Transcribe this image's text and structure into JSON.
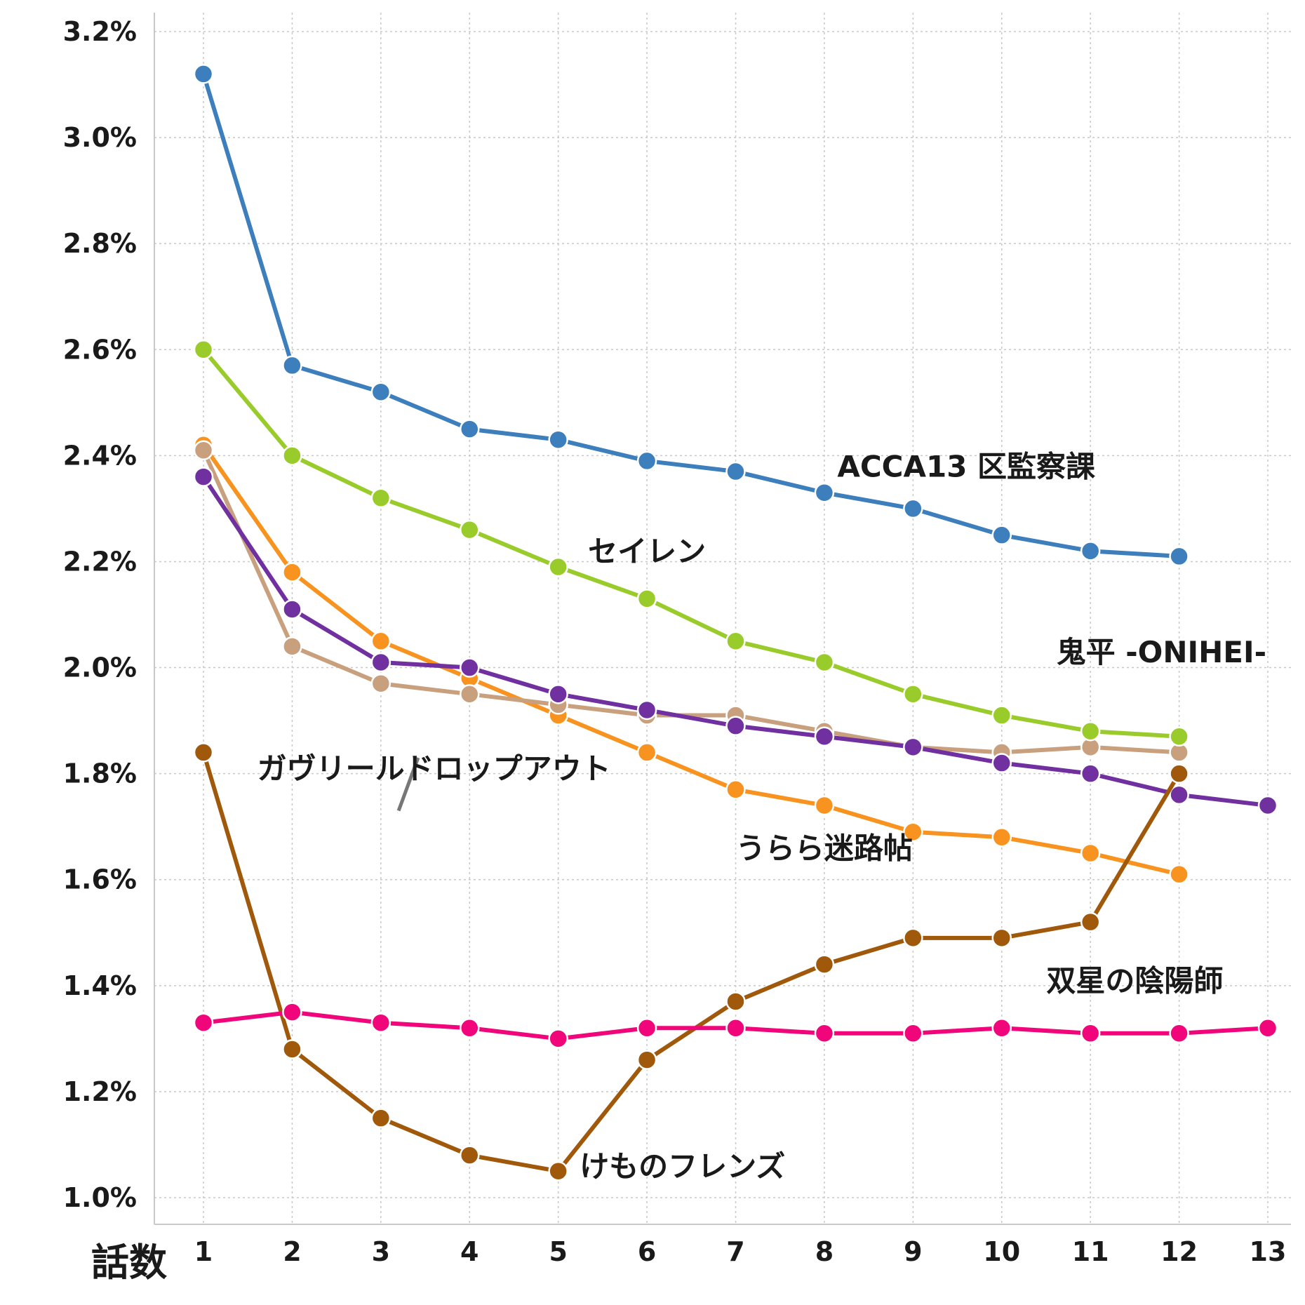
{
  "chart_data": {
    "type": "line",
    "title": "",
    "xlabel": "話数",
    "ylabel": "",
    "x": [
      1,
      2,
      3,
      4,
      5,
      6,
      7,
      8,
      9,
      10,
      11,
      12,
      13
    ],
    "xticks": [
      "1",
      "2",
      "3",
      "4",
      "5",
      "6",
      "7",
      "8",
      "9",
      "10",
      "11",
      "12",
      "13"
    ],
    "xlim": [
      1,
      13
    ],
    "ylim": [
      1.0,
      3.2
    ],
    "yticks": [
      1.0,
      1.2,
      1.4,
      1.6,
      1.8,
      2.0,
      2.2,
      2.4,
      2.6,
      2.8,
      3.0,
      3.2
    ],
    "ytick_labels": [
      "1.0%",
      "1.2%",
      "1.4%",
      "1.6%",
      "1.8%",
      "2.0%",
      "2.2%",
      "2.4%",
      "2.6%",
      "2.8%",
      "3.0%",
      "3.2%"
    ],
    "grid": true,
    "series": [
      {
        "name": "うらら迷路帖",
        "color": "#f7931e",
        "values": [
          2.42,
          2.18,
          2.05,
          1.98,
          1.91,
          1.84,
          1.77,
          1.74,
          1.69,
          1.68,
          1.65,
          1.61,
          null
        ]
      },
      {
        "name": "ガヴリールドロップアウト",
        "color": "#c9a07e",
        "values": [
          2.41,
          2.04,
          1.97,
          1.95,
          1.93,
          1.91,
          1.91,
          1.88,
          1.85,
          1.84,
          1.85,
          1.84,
          null
        ]
      },
      {
        "name": "鬼平 -ONIHEI-",
        "color": "#7030a0",
        "values": [
          2.36,
          2.11,
          2.01,
          2.0,
          1.95,
          1.92,
          1.89,
          1.87,
          1.85,
          1.82,
          1.8,
          1.76,
          1.74
        ]
      },
      {
        "name": "けものフレンズ",
        "color": "#a0580a",
        "values": [
          1.84,
          1.28,
          1.15,
          1.08,
          1.05,
          1.26,
          1.37,
          1.44,
          1.49,
          1.49,
          1.52,
          1.8,
          null
        ]
      },
      {
        "name": "双星の陰陽師",
        "color": "#f0067a",
        "values": [
          1.33,
          1.35,
          1.33,
          1.32,
          1.3,
          1.32,
          1.32,
          1.31,
          1.31,
          1.32,
          1.31,
          1.31,
          1.32
        ]
      },
      {
        "name": "セイレン",
        "color": "#99cc2a",
        "values": [
          2.6,
          2.4,
          2.32,
          2.26,
          2.19,
          2.13,
          2.05,
          2.01,
          1.95,
          1.91,
          1.88,
          1.87,
          null
        ]
      },
      {
        "name": "ACCA13 区監察課",
        "color": "#3d7ebc",
        "values": [
          3.12,
          2.57,
          2.52,
          2.45,
          2.43,
          2.39,
          2.37,
          2.33,
          2.3,
          2.25,
          2.22,
          2.21,
          null
        ]
      }
    ],
    "annotations": [
      {
        "text": "ACCA13 区監察課",
        "x": 9.6,
        "y": 2.36
      },
      {
        "text": "セイレン",
        "x": 6.0,
        "y": 2.2
      },
      {
        "text": "鬼平 -ONIHEI-",
        "x": 11.8,
        "y": 2.01
      },
      {
        "text": "ガヴリールドロップアウト",
        "x": 3.6,
        "y": 1.79
      },
      {
        "text": "うらら迷路帖",
        "x": 8.0,
        "y": 1.64
      },
      {
        "text": "双星の陰陽師",
        "x": 11.5,
        "y": 1.39
      },
      {
        "text": "けものフレンズ",
        "x": 6.4,
        "y": 1.04
      }
    ],
    "callout": {
      "from": [
        3.2,
        1.73
      ],
      "to": [
        3.42,
        1.83
      ]
    }
  }
}
